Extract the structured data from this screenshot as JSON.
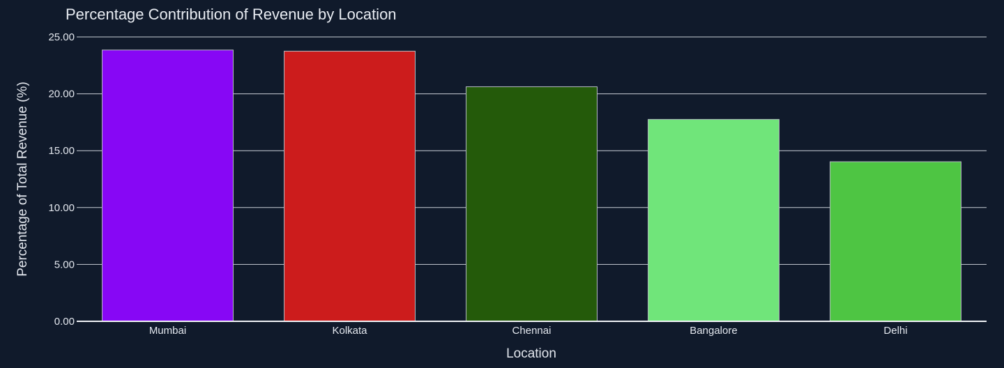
{
  "chart_data": {
    "type": "bar",
    "title": "Percentage Contribution of Revenue by Location",
    "xlabel": "Location",
    "ylabel": "Percentage of Total Revenue (%)",
    "categories": [
      "Mumbai",
      "Kolkata",
      "Chennai",
      "Bangalore",
      "Delhi"
    ],
    "values": [
      23.85,
      23.75,
      20.62,
      17.75,
      14.03
    ],
    "colors": [
      "#8707f5",
      "#cc1c1c",
      "#245a0a",
      "#70e57a",
      "#4ec543"
    ],
    "ylim": [
      0,
      25
    ],
    "yticks": [
      0,
      5,
      10,
      15,
      20,
      25
    ],
    "ytick_labels": [
      "0.00",
      "5.00",
      "10.00",
      "15.00",
      "20.00",
      "25.00"
    ],
    "grid": true,
    "legend": "none"
  }
}
